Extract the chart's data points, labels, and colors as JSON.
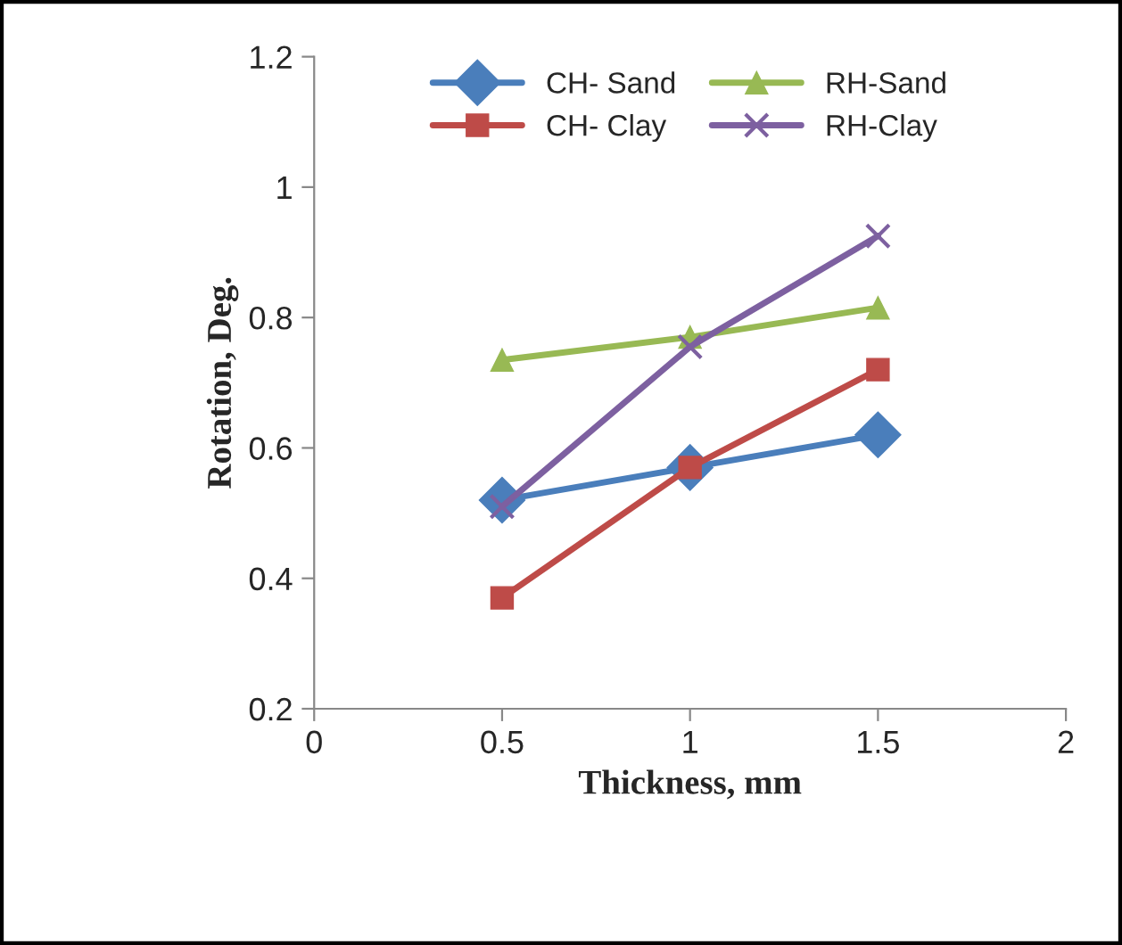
{
  "chart_data": {
    "type": "line",
    "xlabel": "Thickness, mm",
    "ylabel": "Rotation, Deg.",
    "x": [
      0.5,
      1,
      1.5
    ],
    "series": [
      {
        "name": "CH- Sand",
        "color": "#4a7ebb",
        "marker": "diamond",
        "values": [
          0.52,
          0.57,
          0.62
        ]
      },
      {
        "name": "CH- Clay",
        "color": "#be4b48",
        "marker": "square",
        "values": [
          0.37,
          0.57,
          0.72
        ]
      },
      {
        "name": "RH-Sand",
        "color": "#98b954",
        "marker": "triangle",
        "values": [
          0.735,
          0.77,
          0.815
        ]
      },
      {
        "name": "RH-Clay",
        "color": "#7d60a0",
        "marker": "cross",
        "values": [
          0.51,
          0.755,
          0.925
        ]
      }
    ],
    "xlim": [
      0,
      2
    ],
    "xticks": [
      0,
      0.5,
      1,
      1.5,
      2
    ],
    "ylim": [
      0.2,
      1.2
    ],
    "yticks": [
      0.2,
      0.4,
      0.6,
      0.8,
      1,
      1.2
    ],
    "grid": false,
    "legend": "top"
  }
}
